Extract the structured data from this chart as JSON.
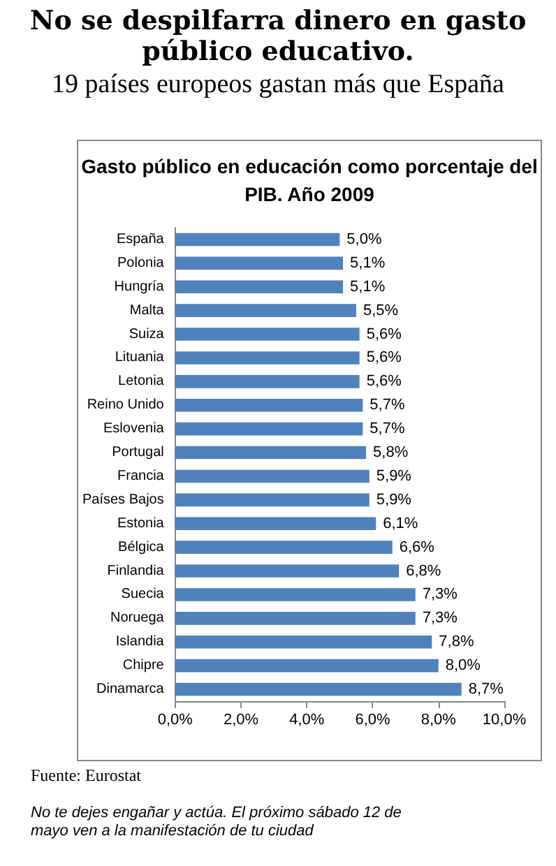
{
  "chart_data": {
    "type": "bar",
    "orientation": "horizontal",
    "title": "No se despilfarra dinero en gasto público educativo.",
    "subtitle": "19 países europeos gastan más que España",
    "annotations": [
      "Gasto público en educación como porcentaje del PIB. Año 2009",
      "Fuente: Eurostat",
      "No te dejes engañar y actúa. El próximo sábado 12 de mayo ven a la manifestación de tu ciudad"
    ],
    "categories": [
      "España",
      "Polonia",
      "Hungría",
      "Malta",
      "Suiza",
      "Lituania",
      "Letonia",
      "Reino Unido",
      "Eslovenia",
      "Portugal",
      "Francia",
      "Países Bajos",
      "Estonia",
      "Bélgica",
      "Finlandia",
      "Suecia",
      "Noruega",
      "Islandia",
      "Chipre",
      "Dinamarca"
    ],
    "values": [
      5.0,
      5.1,
      5.1,
      5.5,
      5.6,
      5.6,
      5.6,
      5.7,
      5.7,
      5.8,
      5.9,
      5.9,
      6.1,
      6.6,
      6.8,
      7.3,
      7.3,
      7.8,
      8.0,
      8.7
    ],
    "value_labels": [
      "5,0%",
      "5,1%",
      "5,1%",
      "5,5%",
      "5,6%",
      "5,6%",
      "5,6%",
      "5,7%",
      "5,7%",
      "5,8%",
      "5,9%",
      "5,9%",
      "6,1%",
      "6,6%",
      "6,8%",
      "7,3%",
      "7,3%",
      "7,8%",
      "8,0%",
      "8,7%"
    ],
    "color": "#4f81bd",
    "xlim": [
      0,
      10
    ],
    "xticks": [
      {
        "value": 0,
        "label": "0,0%"
      },
      {
        "value": 2,
        "label": "2,0%"
      },
      {
        "value": 4,
        "label": "4,0%"
      },
      {
        "value": 6,
        "label": "6,0%"
      },
      {
        "value": 8,
        "label": "8,0%"
      },
      {
        "value": 10,
        "label": "10,0%"
      }
    ],
    "grid": false
  }
}
